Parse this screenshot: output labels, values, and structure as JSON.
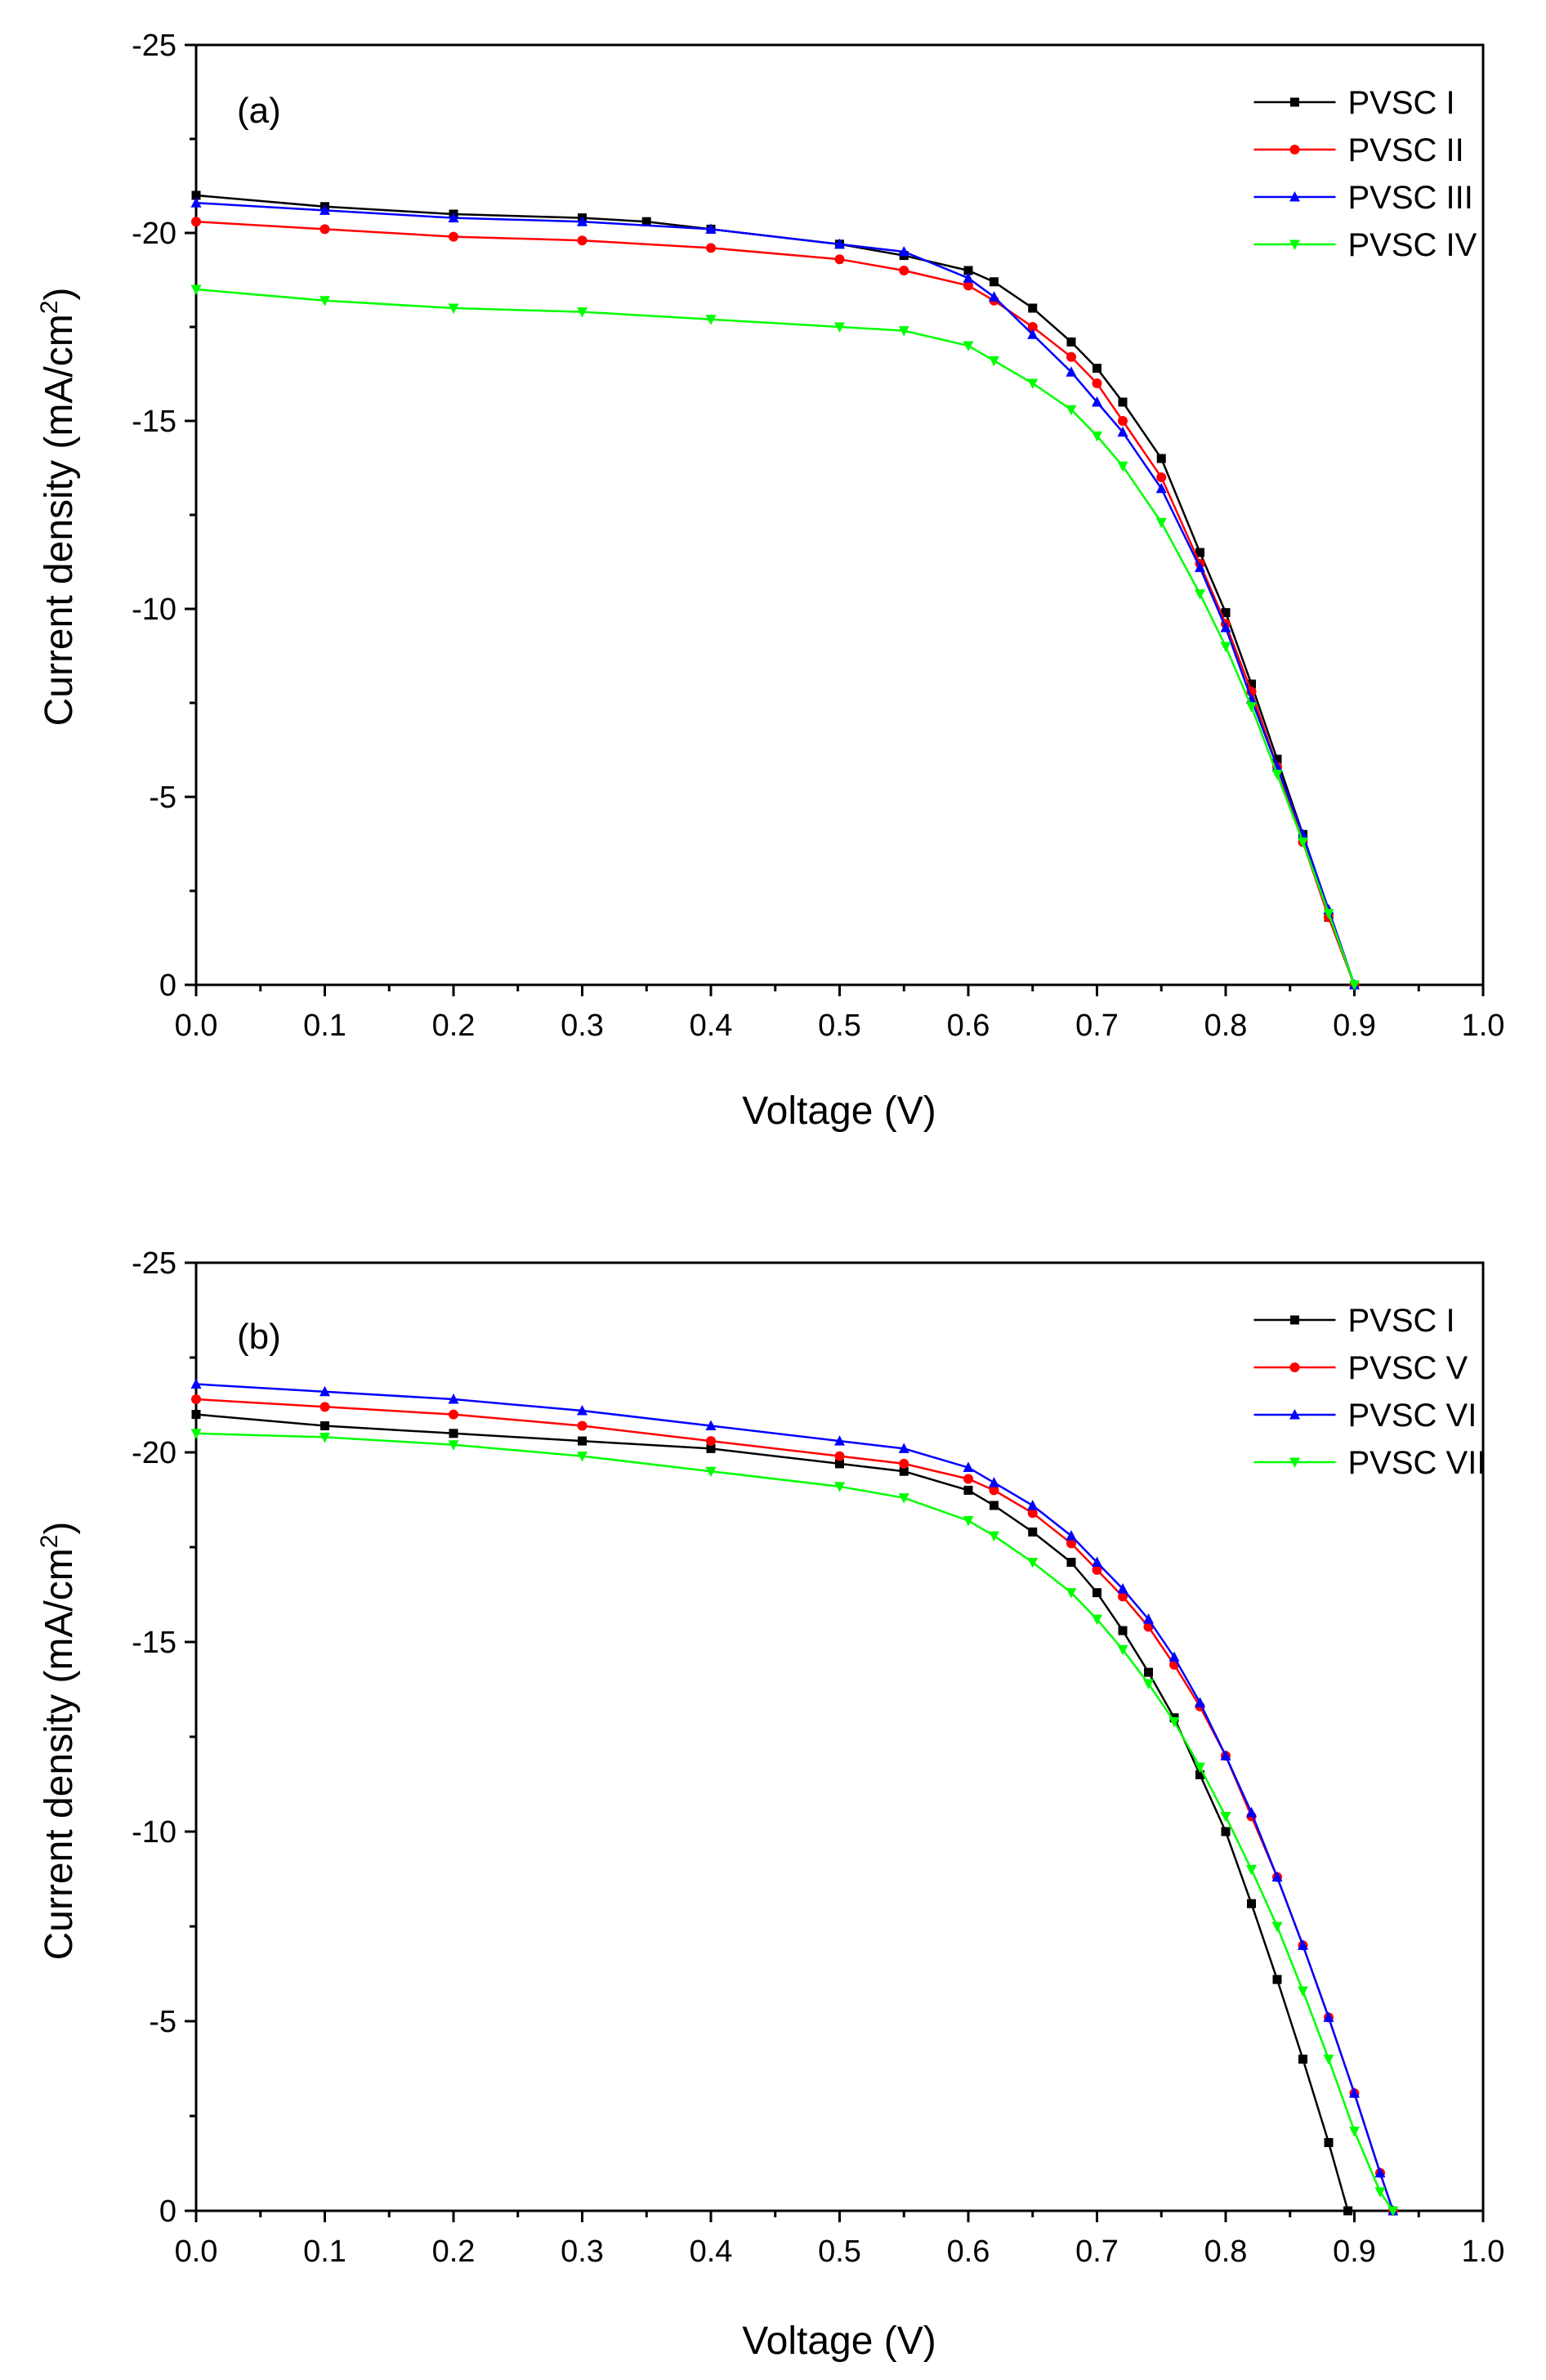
{
  "chart_data": [
    {
      "type": "line",
      "panel_label": "(a)",
      "xlabel": "Voltage (V)",
      "ylabel_main": "Current density (mA/cm",
      "ylabel_sup": "2",
      "ylabel_close": ")",
      "xlim": [
        0.0,
        1.0
      ],
      "ylim": [
        0,
        -25
      ],
      "x_ticks": [
        "0.0",
        "0.1",
        "0.2",
        "0.3",
        "0.4",
        "0.5",
        "0.6",
        "0.7",
        "0.8",
        "0.9",
        "1.0"
      ],
      "y_ticks": [
        "0",
        "-5",
        "-10",
        "-15",
        "-20",
        "-25"
      ],
      "legend_position": "top-right",
      "series": [
        {
          "name": "PVSC I",
          "color": "#000000",
          "marker": "square",
          "x": [
            0.0,
            0.1,
            0.2,
            0.3,
            0.35,
            0.4,
            0.5,
            0.55,
            0.6,
            0.62,
            0.65,
            0.68,
            0.7,
            0.72,
            0.75,
            0.78,
            0.8,
            0.82,
            0.84,
            0.86,
            0.88,
            0.9
          ],
          "y": [
            -21.0,
            -20.7,
            -20.5,
            -20.4,
            -20.3,
            -20.1,
            -19.7,
            -19.4,
            -19.0,
            -18.7,
            -18.0,
            -17.1,
            -16.4,
            -15.5,
            -14.0,
            -11.5,
            -9.9,
            -8.0,
            -6.0,
            -4.0,
            -1.8,
            0.0
          ]
        },
        {
          "name": "PVSC II",
          "color": "#ff0000",
          "marker": "circle",
          "x": [
            0.0,
            0.1,
            0.2,
            0.3,
            0.4,
            0.5,
            0.55,
            0.6,
            0.62,
            0.65,
            0.68,
            0.7,
            0.72,
            0.75,
            0.78,
            0.8,
            0.82,
            0.84,
            0.86,
            0.88,
            0.9
          ],
          "y": [
            -20.3,
            -20.1,
            -19.9,
            -19.8,
            -19.6,
            -19.3,
            -19.0,
            -18.6,
            -18.2,
            -17.5,
            -16.7,
            -16.0,
            -15.0,
            -13.5,
            -11.2,
            -9.6,
            -7.8,
            -5.8,
            -3.8,
            -1.8,
            0.0
          ]
        },
        {
          "name": "PVSC III",
          "color": "#0000ff",
          "marker": "triangle-up",
          "x": [
            0.0,
            0.1,
            0.2,
            0.3,
            0.4,
            0.5,
            0.55,
            0.6,
            0.62,
            0.65,
            0.68,
            0.7,
            0.72,
            0.75,
            0.78,
            0.8,
            0.82,
            0.84,
            0.86,
            0.88,
            0.9
          ],
          "y": [
            -20.8,
            -20.6,
            -20.4,
            -20.3,
            -20.1,
            -19.7,
            -19.5,
            -18.8,
            -18.3,
            -17.3,
            -16.3,
            -15.5,
            -14.7,
            -13.2,
            -11.1,
            -9.5,
            -7.6,
            -5.8,
            -4.0,
            -2.0,
            0.0
          ]
        },
        {
          "name": "PVSC IV",
          "color": "#00ff00",
          "marker": "triangle-down",
          "x": [
            0.0,
            0.1,
            0.2,
            0.3,
            0.4,
            0.5,
            0.55,
            0.6,
            0.62,
            0.65,
            0.68,
            0.7,
            0.72,
            0.75,
            0.78,
            0.8,
            0.82,
            0.84,
            0.86,
            0.88,
            0.9
          ],
          "y": [
            -18.5,
            -18.2,
            -18.0,
            -17.9,
            -17.7,
            -17.5,
            -17.4,
            -17.0,
            -16.6,
            -16.0,
            -15.3,
            -14.6,
            -13.8,
            -12.3,
            -10.4,
            -9.0,
            -7.4,
            -5.6,
            -3.8,
            -1.9,
            0.0
          ]
        }
      ]
    },
    {
      "type": "line",
      "panel_label": "(b)",
      "xlabel": "Voltage (V)",
      "ylabel_main": "Current density (mA/cm",
      "ylabel_sup": "2",
      "ylabel_close": ")",
      "xlim": [
        0.0,
        1.0
      ],
      "ylim": [
        0,
        -25
      ],
      "x_ticks": [
        "0.0",
        "0.1",
        "0.2",
        "0.3",
        "0.4",
        "0.5",
        "0.6",
        "0.7",
        "0.8",
        "0.9",
        "1.0"
      ],
      "y_ticks": [
        "0",
        "-5",
        "-10",
        "-15",
        "-20",
        "-25"
      ],
      "legend_position": "top-right",
      "series": [
        {
          "name": "PVSC I",
          "color": "#000000",
          "marker": "square",
          "x": [
            0.0,
            0.1,
            0.2,
            0.3,
            0.4,
            0.5,
            0.55,
            0.6,
            0.62,
            0.65,
            0.68,
            0.7,
            0.72,
            0.74,
            0.76,
            0.78,
            0.8,
            0.82,
            0.84,
            0.86,
            0.88,
            0.895
          ],
          "y": [
            -21.0,
            -20.7,
            -20.5,
            -20.3,
            -20.1,
            -19.7,
            -19.5,
            -19.0,
            -18.6,
            -17.9,
            -17.1,
            -16.3,
            -15.3,
            -14.2,
            -13.0,
            -11.5,
            -10.0,
            -8.1,
            -6.1,
            -4.0,
            -1.8,
            0.0
          ]
        },
        {
          "name": "PVSC V",
          "color": "#ff0000",
          "marker": "circle",
          "x": [
            0.0,
            0.1,
            0.2,
            0.3,
            0.4,
            0.5,
            0.55,
            0.6,
            0.62,
            0.65,
            0.68,
            0.7,
            0.72,
            0.74,
            0.76,
            0.78,
            0.8,
            0.82,
            0.84,
            0.86,
            0.88,
            0.9,
            0.92,
            0.93
          ],
          "y": [
            -21.4,
            -21.2,
            -21.0,
            -20.7,
            -20.3,
            -19.9,
            -19.7,
            -19.3,
            -19.0,
            -18.4,
            -17.6,
            -16.9,
            -16.2,
            -15.4,
            -14.4,
            -13.3,
            -12.0,
            -10.4,
            -8.8,
            -7.0,
            -5.1,
            -3.1,
            -1.0,
            0.0
          ]
        },
        {
          "name": "PVSC VI",
          "color": "#0000ff",
          "marker": "triangle-up",
          "x": [
            0.0,
            0.1,
            0.2,
            0.3,
            0.4,
            0.5,
            0.55,
            0.6,
            0.62,
            0.65,
            0.68,
            0.7,
            0.72,
            0.74,
            0.76,
            0.78,
            0.8,
            0.82,
            0.84,
            0.86,
            0.88,
            0.9,
            0.92,
            0.93
          ],
          "y": [
            -21.8,
            -21.6,
            -21.4,
            -21.1,
            -20.7,
            -20.3,
            -20.1,
            -19.6,
            -19.2,
            -18.6,
            -17.8,
            -17.1,
            -16.4,
            -15.6,
            -14.6,
            -13.4,
            -12.0,
            -10.5,
            -8.8,
            -7.0,
            -5.1,
            -3.1,
            -1.0,
            0.0
          ]
        },
        {
          "name": "PVSC VII",
          "color": "#00ff00",
          "marker": "triangle-down",
          "x": [
            0.0,
            0.1,
            0.2,
            0.3,
            0.4,
            0.5,
            0.55,
            0.6,
            0.62,
            0.65,
            0.68,
            0.7,
            0.72,
            0.74,
            0.76,
            0.78,
            0.8,
            0.82,
            0.84,
            0.86,
            0.88,
            0.9,
            0.92,
            0.93
          ],
          "y": [
            -20.5,
            -20.4,
            -20.2,
            -19.9,
            -19.5,
            -19.1,
            -18.8,
            -18.2,
            -17.8,
            -17.1,
            -16.3,
            -15.6,
            -14.8,
            -13.9,
            -12.9,
            -11.7,
            -10.4,
            -9.0,
            -7.5,
            -5.8,
            -4.0,
            -2.1,
            -0.5,
            0.0
          ]
        }
      ]
    }
  ]
}
